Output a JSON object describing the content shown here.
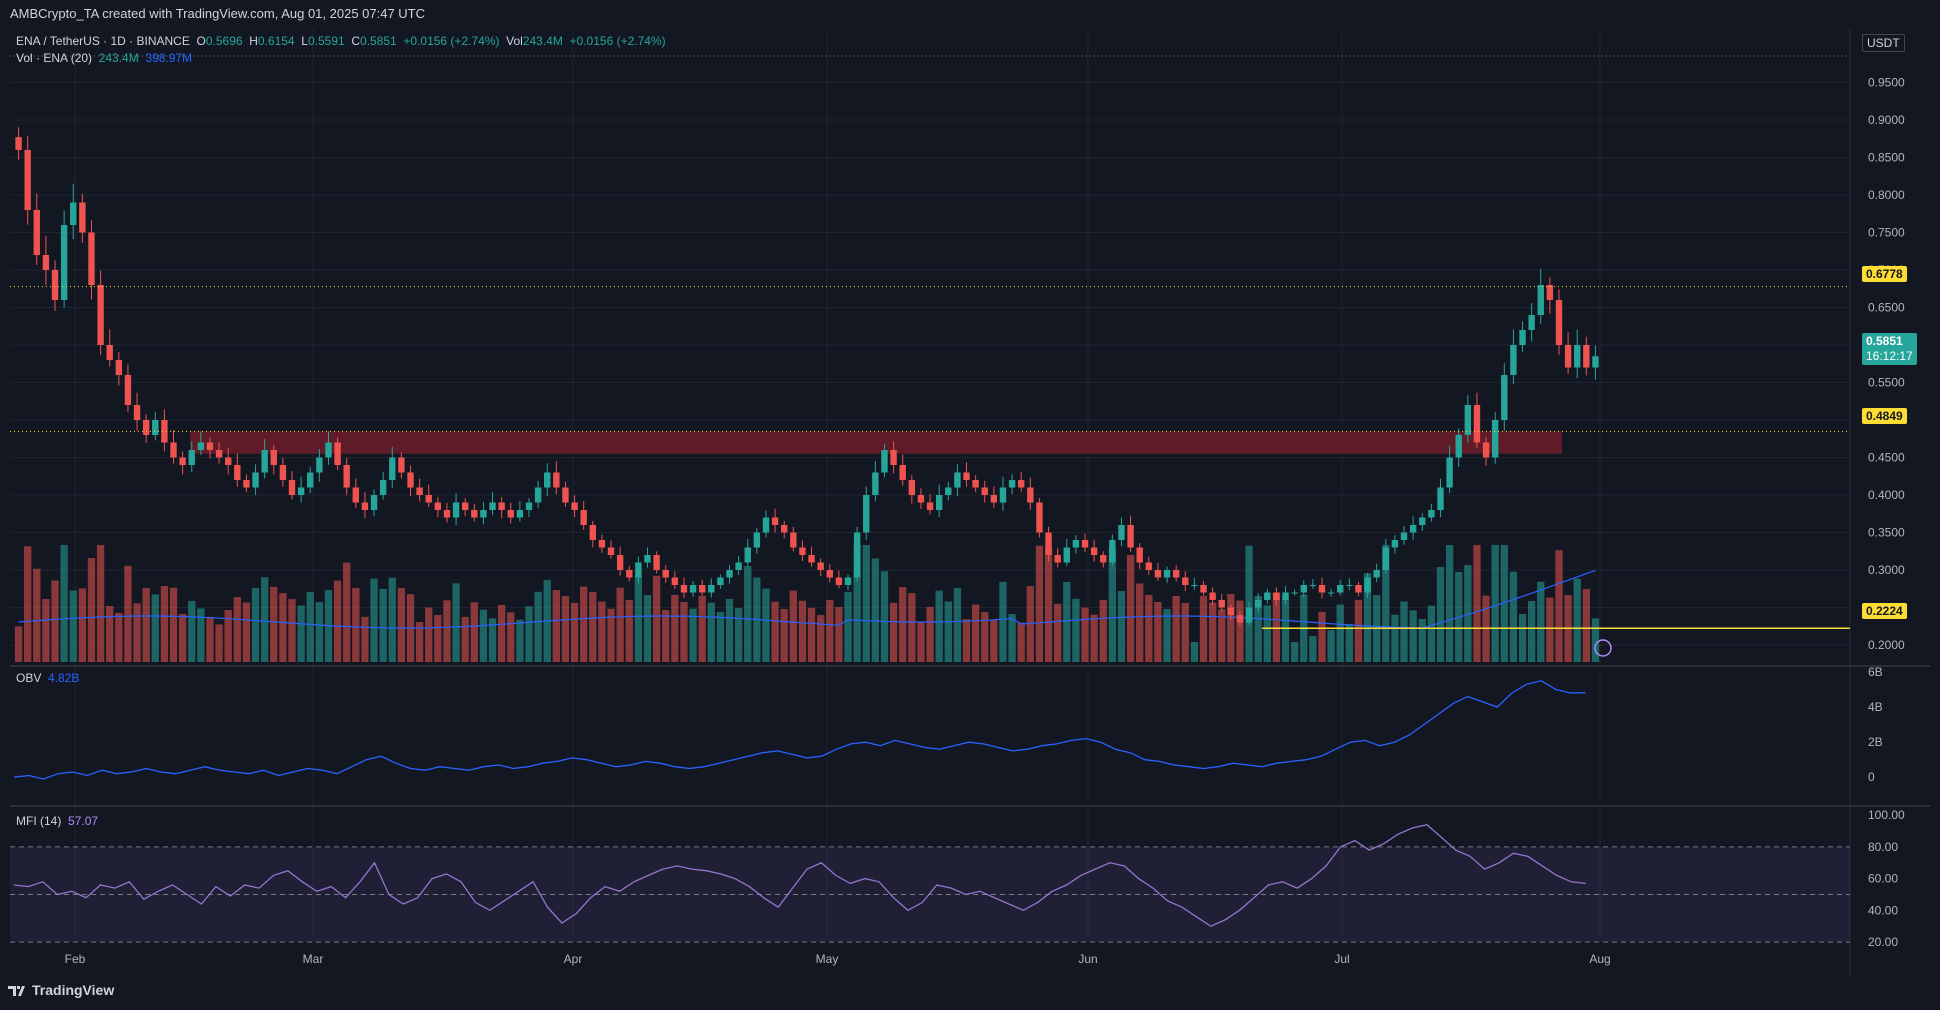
{
  "header": {
    "credit": "AMBCrypto_TA created with TradingView.com, Aug 01, 2025 07:47 UTC"
  },
  "legend": {
    "symbol": "ENA / TetherUS · 1D · BINANCE",
    "open_label": "O",
    "open": "0.5696",
    "high_label": "H",
    "high": "0.6154",
    "low_label": "L",
    "low": "0.5591",
    "close_label": "C",
    "close": "0.5851",
    "change": "+0.0156 (+2.74%)",
    "vol_label": "Vol",
    "vol": "243.4M",
    "vol_change": "+0.0156 (+2.74%)",
    "vol_ma_label": "Vol · ENA (20)",
    "vol_value": "243.4M",
    "vol_ma_value": "398.97M",
    "obv_label": "OBV",
    "obv_value": "4.82B",
    "mfi_label": "MFI (14)",
    "mfi_value": "57.07"
  },
  "currency": "USDT",
  "price_tags": {
    "resistance": "0.6778",
    "current": "0.5851",
    "countdown": "16:12:17",
    "support_zone": "0.4849",
    "support_line": "0.2224"
  },
  "footer": {
    "brand": "TradingView"
  },
  "colors": {
    "up": "#26a69a",
    "down": "#ef5350",
    "bg": "#131722",
    "zone": "#7a1f2b",
    "yellow": "#fddc33",
    "ma": "#2962ff",
    "mfi": "#9575cd"
  },
  "chart_data": [
    {
      "type": "candlestick",
      "title": "ENA / TetherUS · 1D · BINANCE",
      "x_labels": [
        "Feb",
        "Mar",
        "Apr",
        "May",
        "Jun",
        "Jul",
        "Aug"
      ],
      "y_ticks": [
        "0.9500",
        "0.9000",
        "0.8500",
        "0.8000",
        "0.7500",
        "0.7000",
        "0.6500",
        "0.6000",
        "0.5500",
        "0.5000",
        "0.4500",
        "0.4000",
        "0.3500",
        "0.3000",
        "0.2500",
        "0.2000"
      ],
      "ylim": [
        0.18,
        0.98
      ],
      "grid": true,
      "close_series": [
        0.86,
        0.78,
        0.72,
        0.7,
        0.66,
        0.76,
        0.79,
        0.75,
        0.68,
        0.6,
        0.58,
        0.56,
        0.52,
        0.5,
        0.48,
        0.5,
        0.47,
        0.45,
        0.44,
        0.46,
        0.47,
        0.46,
        0.45,
        0.44,
        0.42,
        0.41,
        0.43,
        0.46,
        0.44,
        0.42,
        0.4,
        0.41,
        0.43,
        0.45,
        0.47,
        0.44,
        0.41,
        0.39,
        0.38,
        0.4,
        0.42,
        0.45,
        0.43,
        0.41,
        0.4,
        0.39,
        0.38,
        0.37,
        0.39,
        0.38,
        0.37,
        0.38,
        0.39,
        0.38,
        0.37,
        0.38,
        0.39,
        0.41,
        0.43,
        0.41,
        0.39,
        0.38,
        0.36,
        0.34,
        0.33,
        0.32,
        0.3,
        0.29,
        0.31,
        0.32,
        0.3,
        0.29,
        0.28,
        0.27,
        0.28,
        0.27,
        0.28,
        0.29,
        0.3,
        0.31,
        0.33,
        0.35,
        0.37,
        0.36,
        0.35,
        0.33,
        0.32,
        0.31,
        0.3,
        0.29,
        0.28,
        0.29,
        0.35,
        0.4,
        0.43,
        0.46,
        0.44,
        0.42,
        0.4,
        0.39,
        0.38,
        0.4,
        0.41,
        0.43,
        0.42,
        0.41,
        0.4,
        0.39,
        0.41,
        0.42,
        0.41,
        0.39,
        0.35,
        0.32,
        0.31,
        0.33,
        0.34,
        0.33,
        0.32,
        0.31,
        0.34,
        0.36,
        0.33,
        0.31,
        0.3,
        0.29,
        0.3,
        0.29,
        0.28,
        0.28,
        0.27,
        0.26,
        0.25,
        0.24,
        0.23,
        0.25,
        0.26,
        0.27,
        0.26,
        0.27,
        0.27,
        0.28,
        0.28,
        0.27,
        0.27,
        0.28,
        0.28,
        0.27,
        0.29,
        0.3,
        0.33,
        0.34,
        0.35,
        0.36,
        0.37,
        0.38,
        0.41,
        0.45,
        0.48,
        0.52,
        0.47,
        0.45,
        0.5,
        0.56,
        0.6,
        0.62,
        0.64,
        0.68,
        0.66,
        0.6,
        0.57,
        0.6,
        0.57,
        0.585
      ],
      "volume_ma_20": "398.97M",
      "resistance_level": 0.6778,
      "support_zone": [
        0.455,
        0.4849
      ],
      "support_line": 0.2224,
      "last_close": 0.5851
    },
    {
      "type": "line",
      "title": "OBV",
      "y_ticks": [
        "6B",
        "4B",
        "2B",
        "0"
      ],
      "ylim": [
        -0.5,
        6
      ],
      "values_B": [
        0.0,
        0.1,
        -0.1,
        0.2,
        0.3,
        0.1,
        0.4,
        0.2,
        0.3,
        0.5,
        0.3,
        0.2,
        0.4,
        0.6,
        0.4,
        0.3,
        0.2,
        0.4,
        0.1,
        0.3,
        0.5,
        0.4,
        0.2,
        0.6,
        1.0,
        1.2,
        0.8,
        0.5,
        0.4,
        0.6,
        0.5,
        0.4,
        0.6,
        0.7,
        0.5,
        0.6,
        0.8,
        0.9,
        1.1,
        1.0,
        0.8,
        0.6,
        0.7,
        0.9,
        0.8,
        0.6,
        0.5,
        0.6,
        0.8,
        1.0,
        1.2,
        1.4,
        1.5,
        1.3,
        1.1,
        1.2,
        1.6,
        1.9,
        2.0,
        1.8,
        2.1,
        1.9,
        1.7,
        1.6,
        1.8,
        2.0,
        1.9,
        1.7,
        1.5,
        1.6,
        1.8,
        1.9,
        2.1,
        2.2,
        2.0,
        1.6,
        1.4,
        1.0,
        0.9,
        0.7,
        0.6,
        0.5,
        0.6,
        0.8,
        0.7,
        0.6,
        0.8,
        0.9,
        1.0,
        1.2,
        1.6,
        2.0,
        2.1,
        1.8,
        2.0,
        2.4,
        3.0,
        3.6,
        4.2,
        4.6,
        4.3,
        4.0,
        4.8,
        5.3,
        5.5,
        5.0,
        4.8,
        4.82
      ],
      "last_value": "4.82B"
    },
    {
      "type": "line",
      "title": "MFI (14)",
      "y_ticks": [
        "100.00",
        "80.00",
        "60.00",
        "40.00",
        "20.00"
      ],
      "ylim": [
        15,
        102
      ],
      "bands": [
        20,
        50,
        80
      ],
      "values": [
        56,
        55,
        58,
        50,
        52,
        48,
        56,
        54,
        58,
        47,
        52,
        56,
        50,
        44,
        55,
        49,
        56,
        54,
        62,
        65,
        58,
        52,
        55,
        48,
        58,
        70,
        50,
        44,
        48,
        60,
        63,
        58,
        45,
        40,
        46,
        52,
        58,
        42,
        32,
        38,
        48,
        55,
        52,
        58,
        62,
        66,
        68,
        66,
        65,
        63,
        60,
        55,
        48,
        42,
        54,
        66,
        70,
        62,
        57,
        60,
        58,
        48,
        40,
        45,
        56,
        54,
        50,
        52,
        48,
        44,
        40,
        45,
        52,
        56,
        62,
        66,
        70,
        68,
        60,
        54,
        46,
        42,
        36,
        30,
        34,
        40,
        48,
        56,
        58,
        54,
        60,
        68,
        80,
        84,
        78,
        82,
        88,
        92,
        94,
        86,
        78,
        74,
        66,
        70,
        76,
        74,
        68,
        62,
        58,
        57
      ],
      "last_value": "57.07"
    }
  ]
}
